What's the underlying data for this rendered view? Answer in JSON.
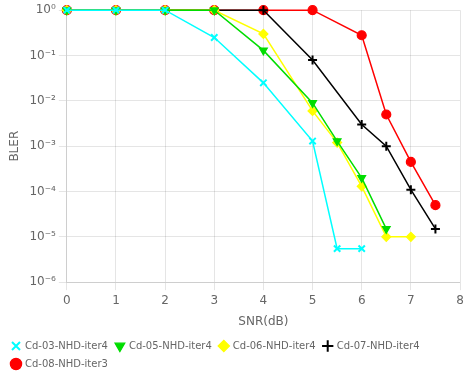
{
  "chart_data": {
    "type": "line",
    "xlabel": "SNR(dB)",
    "ylabel": "BLER",
    "log": "y",
    "xlim": [
      0,
      8
    ],
    "xticks": [
      0,
      1,
      2,
      3,
      4,
      5,
      6,
      7,
      8
    ],
    "ylim": [
      1e-06,
      1
    ],
    "yticks": [
      {
        "value": 1e-06,
        "label": "10⁻⁶"
      },
      {
        "value": 1e-05,
        "label": "10⁻⁵"
      },
      {
        "value": 0.0001,
        "label": "10⁻⁴"
      },
      {
        "value": 0.001,
        "label": "10⁻³"
      },
      {
        "value": 0.01,
        "label": "10⁻²"
      },
      {
        "value": 0.1,
        "label": "10⁻¹"
      },
      {
        "value": 1,
        "label": "10⁰"
      }
    ],
    "grid": true,
    "legend": "lower left",
    "series": [
      {
        "name": "Cd-03-NHD-iter4",
        "color": "cyan",
        "marker": "x",
        "x": [
          0,
          1,
          2,
          3,
          4,
          5,
          5.5,
          6
        ],
        "values": [
          1.0,
          1.0,
          1.0,
          0.25,
          0.025,
          0.0013,
          5.5e-06,
          5.5e-06
        ]
      },
      {
        "name": "Cd-05-NHD-iter4",
        "color": "#00dd00",
        "marker": "triangle_down",
        "x": [
          0,
          1,
          2,
          3,
          4,
          5,
          5.5,
          6,
          6.5
        ],
        "values": [
          1.0,
          1.0,
          1.0,
          1.0,
          0.13,
          0.009,
          0.0013,
          0.0002,
          1.5e-05
        ]
      },
      {
        "name": "Cd-06-NHD-iter4",
        "color": "yellow",
        "marker": "diamond",
        "x": [
          0,
          1,
          2,
          3,
          4,
          5,
          5.5,
          6,
          6.5,
          7
        ],
        "values": [
          1.0,
          1.0,
          1.0,
          1.0,
          0.3,
          0.006,
          0.0012,
          0.00013,
          1e-05,
          1e-05
        ]
      },
      {
        "name": "Cd-07-NHD-iter4",
        "color": "black",
        "marker": "plus",
        "x": [
          0,
          1,
          2,
          3,
          4,
          5,
          6,
          6.5,
          7,
          7.5
        ],
        "values": [
          1.0,
          1.0,
          1.0,
          1.0,
          1.0,
          0.08,
          0.003,
          0.001,
          0.00011,
          1.5e-05
        ]
      },
      {
        "name": "Cd-08-NHD-iter3",
        "color": "red",
        "marker": "circle",
        "x": [
          0,
          1,
          2,
          3,
          4,
          5,
          6,
          6.5,
          7,
          7.5
        ],
        "values": [
          1.0,
          1.0,
          1.0,
          1.0,
          1.0,
          1.0,
          0.28,
          0.005,
          0.00045,
          5e-05
        ]
      }
    ]
  }
}
